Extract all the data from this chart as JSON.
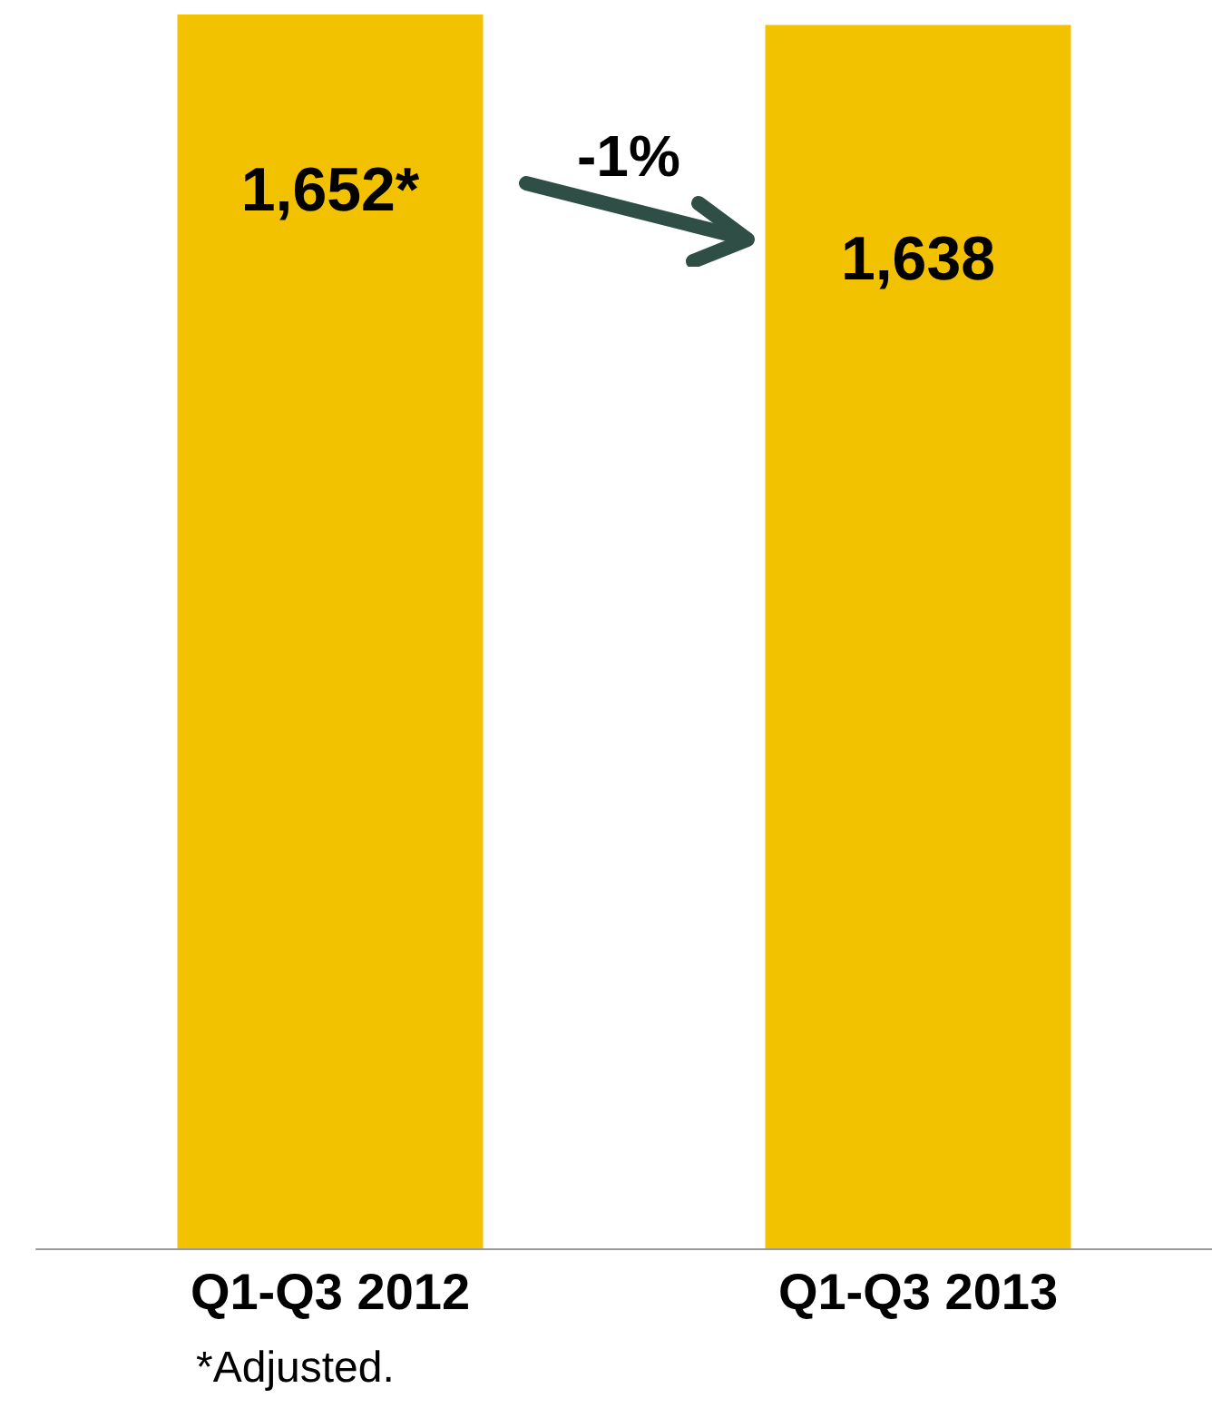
{
  "chart_data": {
    "type": "bar",
    "categories": [
      "Q1-Q3 2012",
      "Q1-Q3 2013"
    ],
    "values": [
      1652,
      1638
    ],
    "value_labels": [
      "1,652*",
      "1,638"
    ],
    "color": "#f2c200",
    "annotations": [
      "-1%",
      "*Adjusted."
    ]
  }
}
